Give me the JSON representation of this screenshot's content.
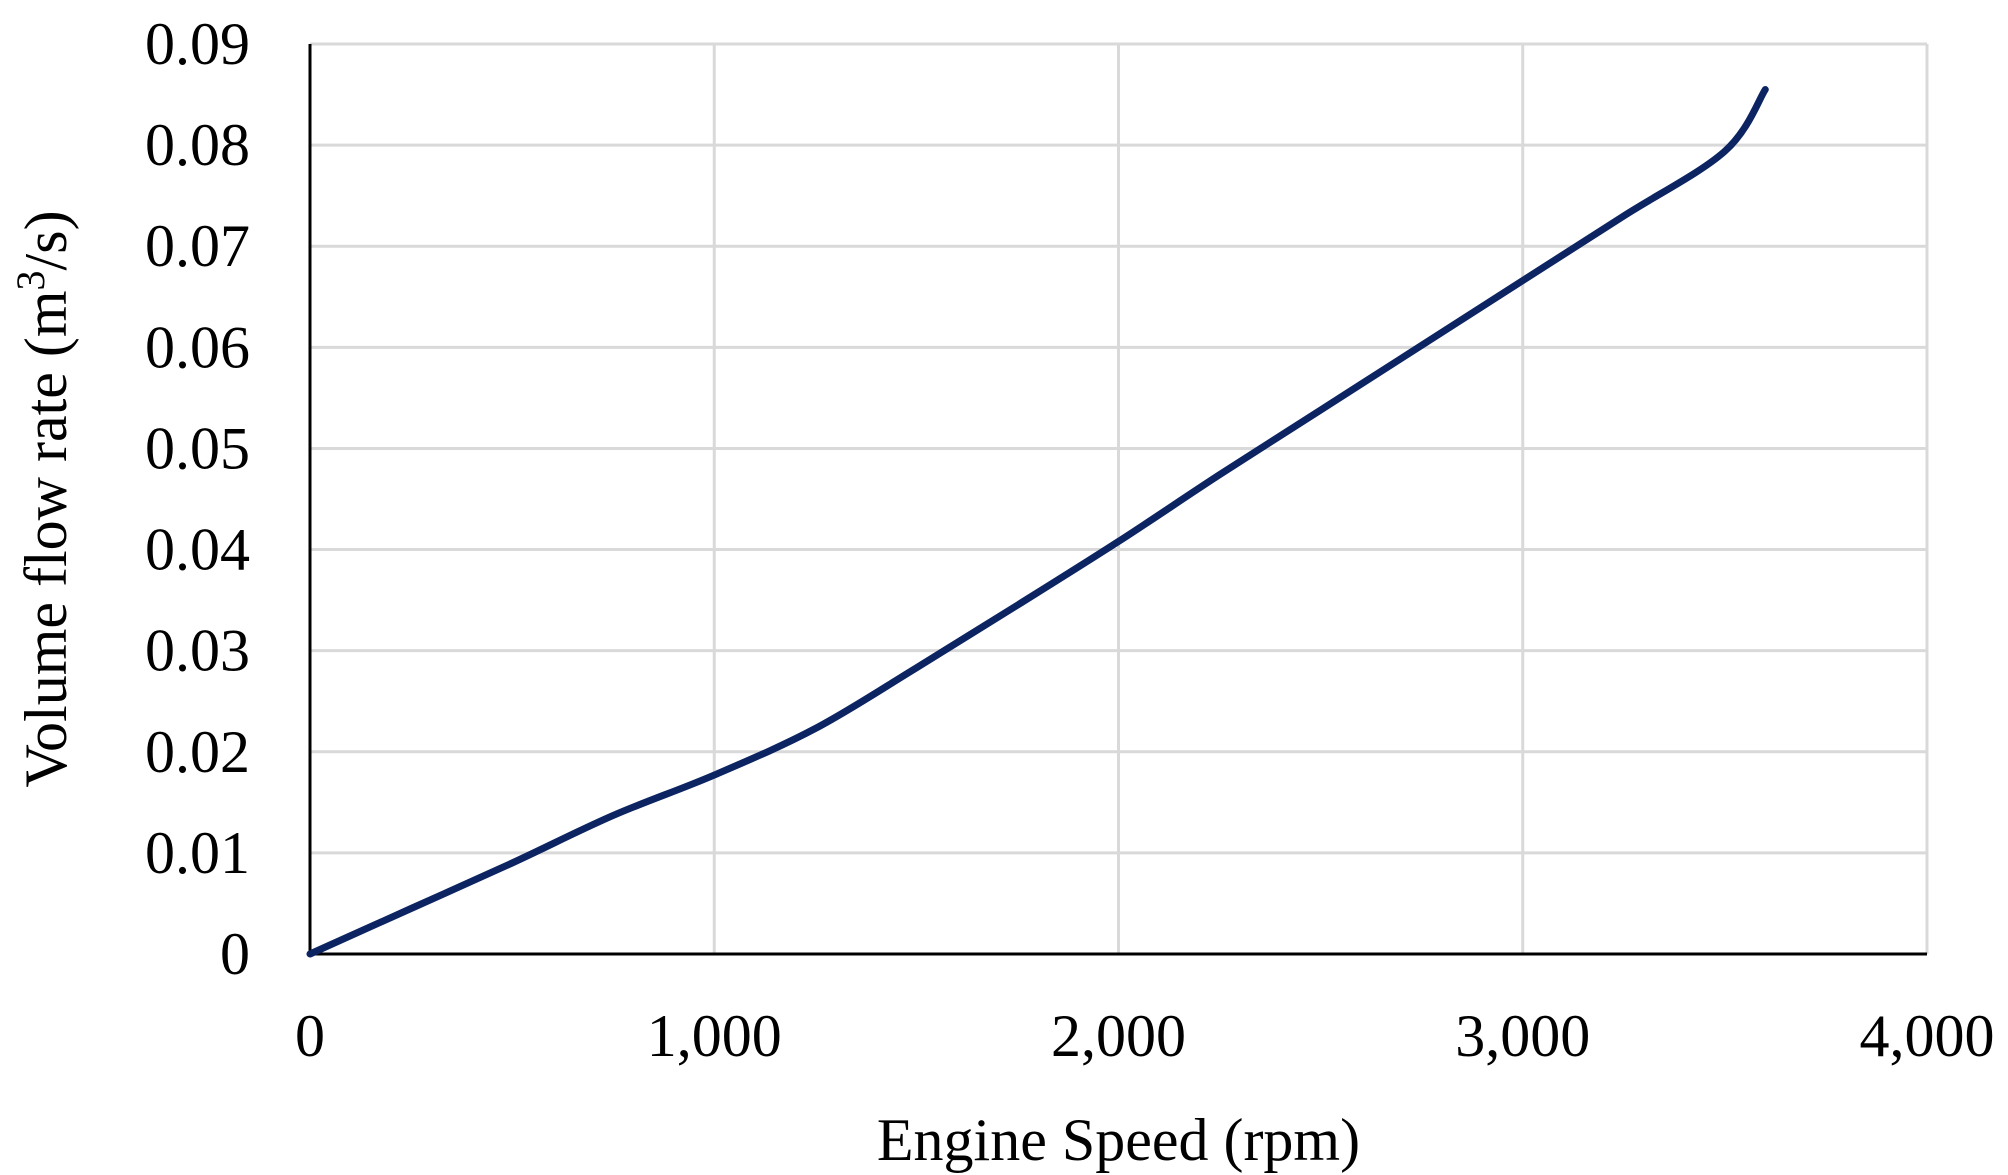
{
  "chart_data": {
    "type": "line",
    "title": "",
    "xlabel": "Engine Speed (rpm)",
    "ylabel": {
      "prefix": "Volume flow rate (m",
      "superscript": "3",
      "suffix": "/s)"
    },
    "xlim": [
      0,
      4000
    ],
    "ylim": [
      0,
      0.09
    ],
    "x_ticks": [
      0,
      1000,
      2000,
      3000,
      4000
    ],
    "x_tick_labels": [
      "0",
      "1,000",
      "2,000",
      "3,000",
      "4,000"
    ],
    "y_ticks": [
      0,
      0.01,
      0.02,
      0.03,
      0.04,
      0.05,
      0.06,
      0.07,
      0.08,
      0.09
    ],
    "y_tick_labels": [
      "0",
      "0.01",
      "0.02",
      "0.03",
      "0.04",
      "0.05",
      "0.06",
      "0.07",
      "0.08",
      "0.09"
    ],
    "grid": true,
    "legend": "none",
    "series": [
      {
        "color": "#0c2461",
        "x": [
          0,
          250,
          500,
          750,
          1000,
          1250,
          1500,
          1750,
          2000,
          2250,
          2500,
          2750,
          3000,
          3250,
          3500,
          3600
        ],
        "values": [
          0,
          0.0045,
          0.009,
          0.0137,
          0.0177,
          0.0223,
          0.0283,
          0.0345,
          0.0408,
          0.0474,
          0.0538,
          0.0602,
          0.0666,
          0.073,
          0.0794,
          0.0855
        ]
      }
    ]
  }
}
